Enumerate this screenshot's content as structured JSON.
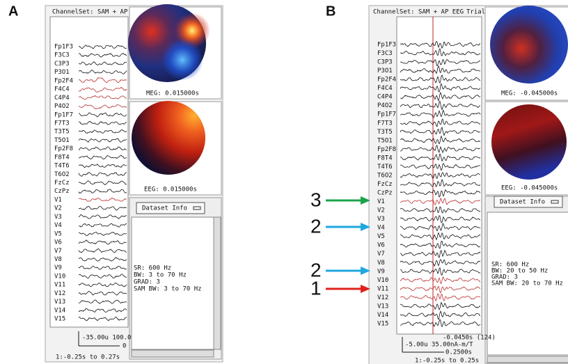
{
  "panels": [
    {
      "label": "A",
      "channel_set": "ChannelSet: SAM + AP",
      "channels": [
        {
          "name": "Fp1F3",
          "color": "#111111"
        },
        {
          "name": "F3C3",
          "color": "#111111"
        },
        {
          "name": "C3P3",
          "color": "#111111"
        },
        {
          "name": "P3O1",
          "color": "#111111"
        },
        {
          "name": "Fp2F4",
          "color": "#b83030"
        },
        {
          "name": "F4C4",
          "color": "#b83030"
        },
        {
          "name": "C4P4",
          "color": "#b83030"
        },
        {
          "name": "P4O2",
          "color": "#b83030"
        },
        {
          "name": "Fp1F7",
          "color": "#111111"
        },
        {
          "name": "F7T3",
          "color": "#111111"
        },
        {
          "name": "T3T5",
          "color": "#111111"
        },
        {
          "name": "T5O1",
          "color": "#111111"
        },
        {
          "name": "Fp2F8",
          "color": "#111111"
        },
        {
          "name": "F8T4",
          "color": "#111111"
        },
        {
          "name": "T4T6",
          "color": "#111111"
        },
        {
          "name": "T6O2",
          "color": "#111111"
        },
        {
          "name": "FzCz",
          "color": "#111111"
        },
        {
          "name": "CzPz",
          "color": "#111111"
        },
        {
          "name": "V1",
          "color": "#b83030"
        },
        {
          "name": "V2",
          "color": "#111111"
        },
        {
          "name": "V3",
          "color": "#111111"
        },
        {
          "name": "V4",
          "color": "#111111"
        },
        {
          "name": "V5",
          "color": "#111111"
        },
        {
          "name": "V6",
          "color": "#111111"
        },
        {
          "name": "V7",
          "color": "#111111"
        },
        {
          "name": "V8",
          "color": "#111111"
        },
        {
          "name": "V9",
          "color": "#111111"
        },
        {
          "name": "V10",
          "color": "#111111"
        },
        {
          "name": "V11",
          "color": "#111111"
        },
        {
          "name": "V12",
          "color": "#111111"
        },
        {
          "name": "V13",
          "color": "#111111"
        },
        {
          "name": "V14",
          "color": "#111111"
        },
        {
          "name": "V15",
          "color": "#111111"
        }
      ],
      "meg_label": "MEG: 0.015000s",
      "eeg_label": "EEG: 0.015000s",
      "menu": "Dataset Info",
      "info": [
        "SR: 600 Hz",
        "BW: 3 to 70 Hz",
        "GRAD: 3",
        "SAM BW: 3 to 70 Hz"
      ],
      "scale": "-35.00u 100.0",
      "scale_zero": "0",
      "time_range": "1:-0.25s to 0.27s"
    },
    {
      "label": "B",
      "channel_set": "ChannelSet: SAM + AP EEG",
      "trial": "Trial",
      "channels": [
        {
          "name": "Fp1F3",
          "color": "#111111"
        },
        {
          "name": "F3C3",
          "color": "#111111"
        },
        {
          "name": "C3P3",
          "color": "#111111"
        },
        {
          "name": "P3O1",
          "color": "#111111"
        },
        {
          "name": "Fp2F4",
          "color": "#111111"
        },
        {
          "name": "F4C4",
          "color": "#111111"
        },
        {
          "name": "C4P4",
          "color": "#111111"
        },
        {
          "name": "P4O2",
          "color": "#111111"
        },
        {
          "name": "Fp1F7",
          "color": "#111111"
        },
        {
          "name": "F7T3",
          "color": "#111111"
        },
        {
          "name": "T3T5",
          "color": "#111111"
        },
        {
          "name": "T5O1",
          "color": "#111111"
        },
        {
          "name": "Fp2F8",
          "color": "#111111"
        },
        {
          "name": "F8T4",
          "color": "#111111"
        },
        {
          "name": "T4T6",
          "color": "#111111"
        },
        {
          "name": "T6O2",
          "color": "#111111"
        },
        {
          "name": "FzCz",
          "color": "#111111"
        },
        {
          "name": "CzPz",
          "color": "#111111"
        },
        {
          "name": "V1",
          "color": "#b83030"
        },
        {
          "name": "V2",
          "color": "#111111"
        },
        {
          "name": "V3",
          "color": "#111111"
        },
        {
          "name": "V4",
          "color": "#111111"
        },
        {
          "name": "V5",
          "color": "#111111"
        },
        {
          "name": "V6",
          "color": "#111111"
        },
        {
          "name": "V7",
          "color": "#111111"
        },
        {
          "name": "V8",
          "color": "#111111"
        },
        {
          "name": "V9",
          "color": "#111111"
        },
        {
          "name": "V10",
          "color": "#b83030"
        },
        {
          "name": "V11",
          "color": "#b83030"
        },
        {
          "name": "V12",
          "color": "#b83030"
        },
        {
          "name": "V13",
          "color": "#111111"
        },
        {
          "name": "V14",
          "color": "#111111"
        },
        {
          "name": "V15",
          "color": "#111111"
        }
      ],
      "meg_label": "MEG: -0.045000s",
      "eeg_label": "EEG: -0.045000s",
      "menu": "Dataset Info",
      "info": [
        "SR: 600 Hz",
        "BW: 20 to 50 Hz",
        "GRAD: 3",
        "SAM BW: 20 to 70 Hz"
      ],
      "cursor": "-0.0450s (124)",
      "scale": "-5.00u 35.00nA-m/T",
      "scale_time": "0.2500s",
      "time_range": "1:-0.25s to 0.25s",
      "arrows": [
        {
          "label": "3",
          "color": "#1aa34a"
        },
        {
          "label": "2",
          "color": "#1ea7e0"
        },
        {
          "label": "2",
          "color": "#1ea7e0"
        },
        {
          "label": "1",
          "color": "#e0201c"
        }
      ]
    }
  ]
}
